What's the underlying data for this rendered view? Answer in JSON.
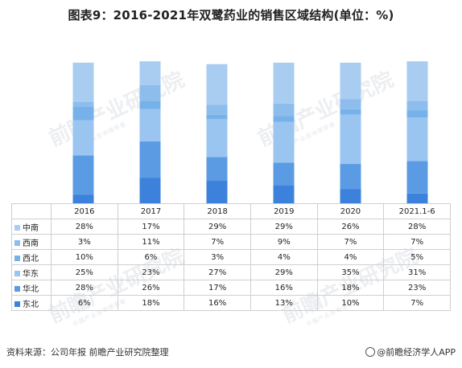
{
  "title": "图表9：2016-2021年双鹭药业的销售区域结构(单位：%)",
  "footer": {
    "source": "资料来源：公司年报 前瞻产业研究院整理",
    "brand": "@前瞻经济学人APP"
  },
  "watermark": {
    "text": "前瞻产业研究院",
    "sub": "中国产业咨询领导者"
  },
  "chart_data": {
    "type": "bar",
    "stacked": true,
    "ylim": [
      0,
      100
    ],
    "categories": [
      "2016",
      "2017",
      "2018",
      "2019",
      "2020",
      "2021.1-6"
    ],
    "series": [
      {
        "name": "中南",
        "color": "#a8cdf1",
        "values": [
          28,
          17,
          29,
          29,
          26,
          28
        ],
        "labels": [
          "28%",
          "17%",
          "29%",
          "29%",
          "26%",
          "28%"
        ]
      },
      {
        "name": "西南",
        "color": "#8dbdec",
        "values": [
          3,
          11,
          7,
          9,
          7,
          7
        ],
        "labels": [
          "3%",
          "11%",
          "7%",
          "9%",
          "7%",
          "7%"
        ]
      },
      {
        "name": "西北",
        "color": "#77b1ea",
        "values": [
          10,
          6,
          3,
          4,
          4,
          5
        ],
        "labels": [
          "10%",
          "6%",
          "3%",
          "4%",
          "4%",
          "5%"
        ]
      },
      {
        "name": "华东",
        "color": "#9ac5f0",
        "values": [
          25,
          23,
          27,
          29,
          35,
          31
        ],
        "labels": [
          "25%",
          "23%",
          "27%",
          "29%",
          "35%",
          "31%"
        ]
      },
      {
        "name": "华北",
        "color": "#5b9be3",
        "values": [
          28,
          26,
          17,
          16,
          18,
          23
        ],
        "labels": [
          "28%",
          "26%",
          "17%",
          "16%",
          "18%",
          "23%"
        ]
      },
      {
        "name": "东北",
        "color": "#3c82dc",
        "values": [
          6,
          18,
          16,
          13,
          10,
          7
        ],
        "labels": [
          "6%",
          "18%",
          "16%",
          "13%",
          "10%",
          "7%"
        ]
      }
    ]
  }
}
